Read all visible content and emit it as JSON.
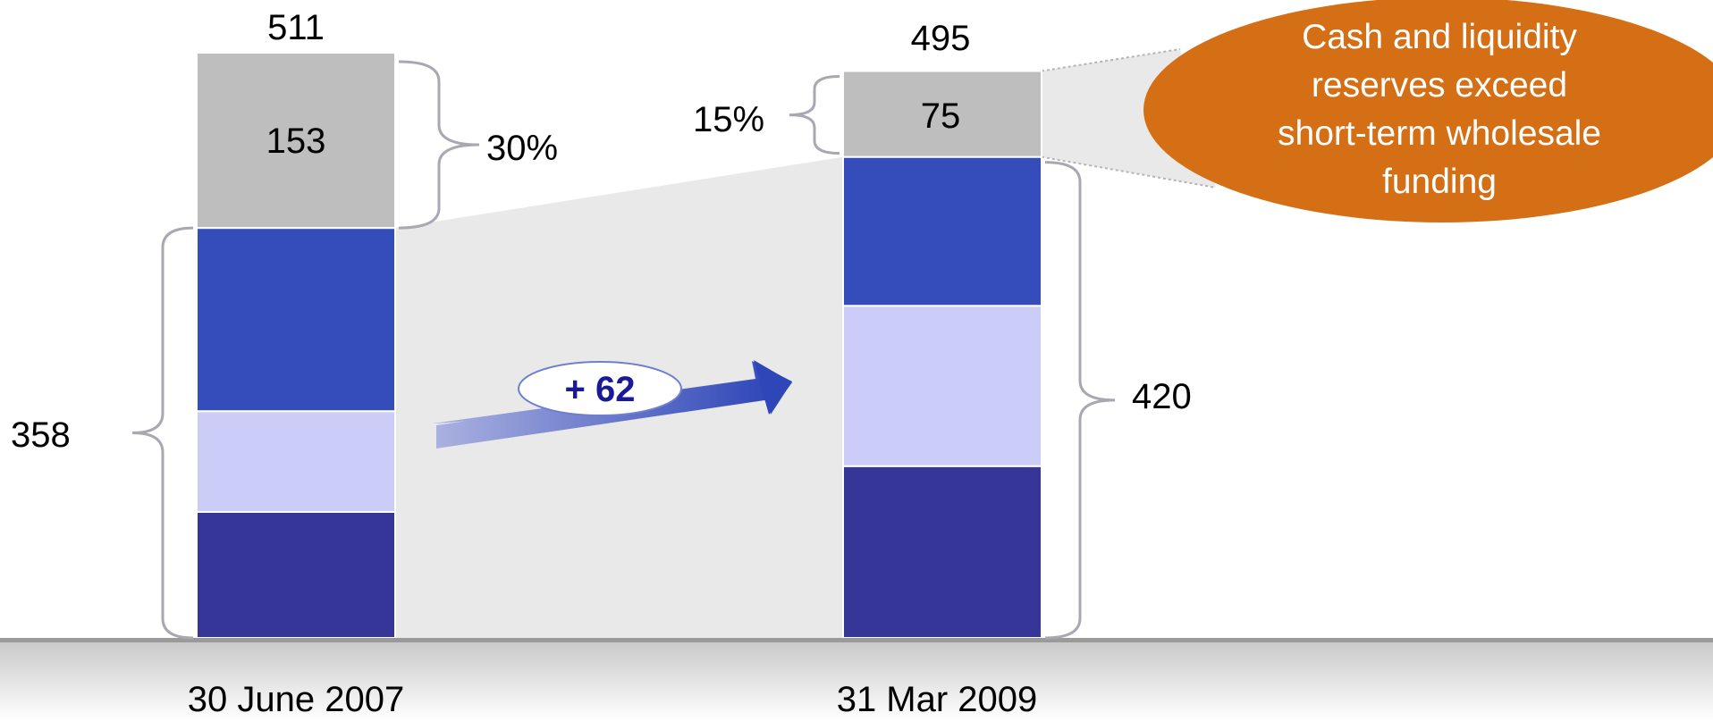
{
  "colors": {
    "dark_blue": "#353697",
    "light_blue": "#ccccf9",
    "medium_blue": "#344dbb",
    "grey_segment": "#bebebe",
    "connector_fill": "#e9e9e9",
    "brace": "#a8a8b2",
    "baseline": "#9a9a9a",
    "callout": "#d46f15",
    "arrow_start": "#aab1e0",
    "arrow_end": "#2f46b8",
    "delta_text": "#1a1a99"
  },
  "chart_data": {
    "type": "bar",
    "stacked": true,
    "categories": [
      "30 June 2007",
      "31 Mar 2009"
    ],
    "totals": [
      511,
      495
    ],
    "series": [
      {
        "values": [
          110,
          150
        ],
        "color": "#353697"
      },
      {
        "values": [
          88,
          140
        ],
        "color": "#ccccf9"
      },
      {
        "values": [
          160,
          130
        ],
        "color": "#344dbb"
      },
      {
        "values": [
          153,
          75
        ],
        "color": "#bebebe"
      }
    ],
    "segment_labels": [
      "153",
      "75"
    ],
    "bracket_labels": {
      "left_lower": "358",
      "left_upper_pct": "30%",
      "right_upper_pct": "15%",
      "right_lower": "420"
    },
    "change_label": "+ 62",
    "callout": [
      "Cash and liquidity",
      "reserves exceed",
      "short-term wholesale",
      "funding"
    ],
    "ylim": [
      0,
      540
    ],
    "grid": false,
    "legend": "none"
  }
}
